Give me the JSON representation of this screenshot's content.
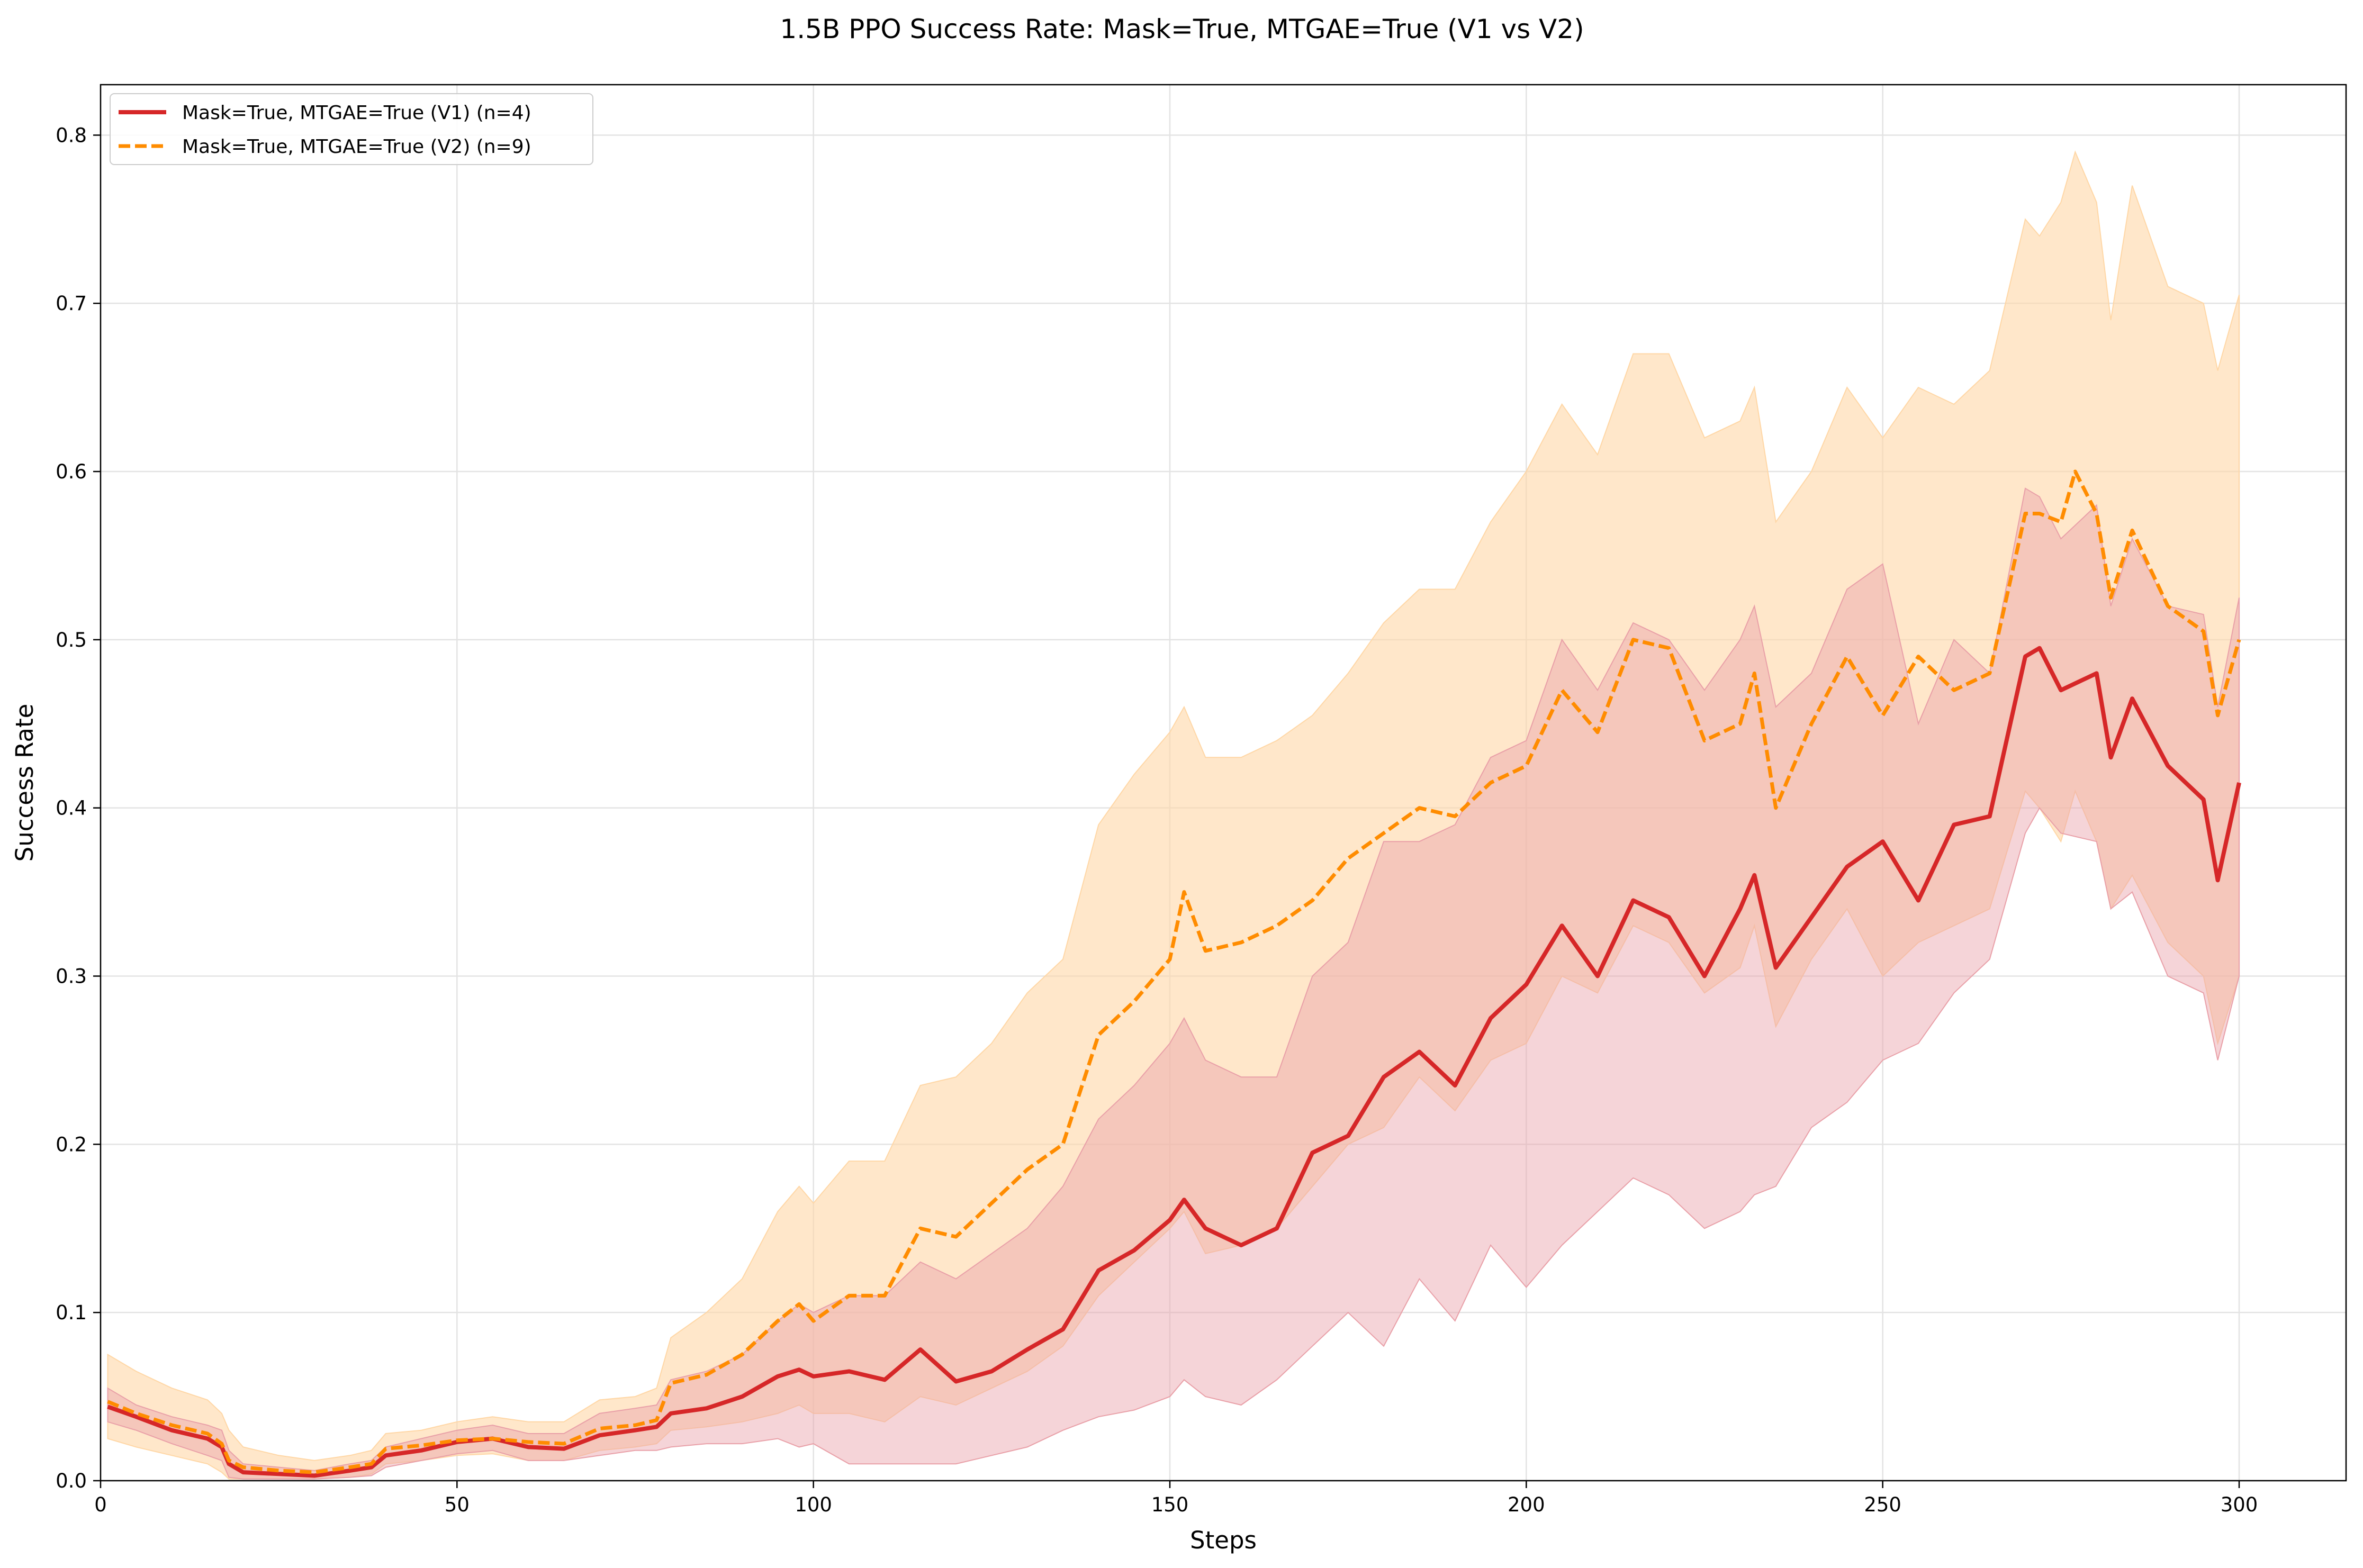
{
  "chart_data": {
    "type": "line",
    "title": "1.5B PPO Success Rate: Mask=True, MTGAE=True (V1 vs V2)",
    "xlabel": "Steps",
    "ylabel": "Success Rate",
    "xlim": [
      0,
      315
    ],
    "ylim": [
      0,
      0.83
    ],
    "xticks": [
      "0",
      "50",
      "100",
      "150",
      "200",
      "250",
      "300"
    ],
    "yticks": [
      "0.0",
      "0.1",
      "0.2",
      "0.3",
      "0.4",
      "0.5",
      "0.6",
      "0.7",
      "0.8"
    ],
    "grid": true,
    "legend_position": "top-left",
    "series": [
      {
        "name": "Mask=True, MTGAE=True (V1) (n=4)",
        "color": "#d62728",
        "line_style": "solid",
        "band_color": "#e9a0a8",
        "x": [
          1,
          5,
          10,
          15,
          17,
          18,
          20,
          25,
          30,
          35,
          38,
          40,
          45,
          50,
          55,
          60,
          65,
          70,
          75,
          78,
          80,
          85,
          90,
          95,
          98,
          100,
          105,
          110,
          115,
          120,
          125,
          130,
          135,
          140,
          145,
          150,
          152,
          155,
          160,
          165,
          170,
          175,
          180,
          185,
          190,
          195,
          200,
          205,
          210,
          215,
          220,
          225,
          230,
          232,
          235,
          240,
          245,
          250,
          255,
          260,
          265,
          270,
          272,
          275,
          280,
          282,
          285,
          290,
          295,
          297,
          300
        ],
        "mean": [
          0.044,
          0.038,
          0.03,
          0.025,
          0.02,
          0.01,
          0.005,
          0.004,
          0.003,
          0.006,
          0.008,
          0.015,
          0.018,
          0.023,
          0.025,
          0.02,
          0.019,
          0.027,
          0.03,
          0.032,
          0.04,
          0.043,
          0.05,
          0.062,
          0.066,
          0.062,
          0.065,
          0.06,
          0.078,
          0.059,
          0.065,
          0.078,
          0.09,
          0.125,
          0.137,
          0.155,
          0.167,
          0.15,
          0.14,
          0.15,
          0.195,
          0.205,
          0.24,
          0.255,
          0.235,
          0.275,
          0.295,
          0.33,
          0.3,
          0.345,
          0.335,
          0.3,
          0.34,
          0.36,
          0.305,
          0.335,
          0.365,
          0.38,
          0.345,
          0.39,
          0.395,
          0.49,
          0.495,
          0.47,
          0.48,
          0.43,
          0.465,
          0.425,
          0.405,
          0.357,
          0.415
        ],
        "lower": [
          0.035,
          0.03,
          0.022,
          0.015,
          0.012,
          0.002,
          0.001,
          0.001,
          0.001,
          0.002,
          0.003,
          0.008,
          0.012,
          0.016,
          0.018,
          0.012,
          0.012,
          0.015,
          0.018,
          0.018,
          0.02,
          0.022,
          0.022,
          0.025,
          0.02,
          0.022,
          0.01,
          0.01,
          0.01,
          0.01,
          0.015,
          0.02,
          0.03,
          0.038,
          0.042,
          0.05,
          0.06,
          0.05,
          0.045,
          0.06,
          0.08,
          0.1,
          0.08,
          0.12,
          0.095,
          0.14,
          0.115,
          0.14,
          0.16,
          0.18,
          0.17,
          0.15,
          0.16,
          0.17,
          0.175,
          0.21,
          0.225,
          0.25,
          0.26,
          0.29,
          0.31,
          0.385,
          0.4,
          0.385,
          0.38,
          0.34,
          0.35,
          0.3,
          0.29,
          0.25,
          0.3
        ],
        "upper": [
          0.055,
          0.045,
          0.038,
          0.033,
          0.03,
          0.018,
          0.01,
          0.008,
          0.006,
          0.01,
          0.012,
          0.02,
          0.025,
          0.03,
          0.033,
          0.028,
          0.028,
          0.04,
          0.043,
          0.045,
          0.06,
          0.065,
          0.075,
          0.095,
          0.105,
          0.1,
          0.11,
          0.11,
          0.13,
          0.12,
          0.135,
          0.15,
          0.175,
          0.215,
          0.235,
          0.26,
          0.275,
          0.25,
          0.24,
          0.24,
          0.3,
          0.32,
          0.38,
          0.38,
          0.39,
          0.43,
          0.44,
          0.5,
          0.47,
          0.51,
          0.5,
          0.47,
          0.5,
          0.52,
          0.46,
          0.48,
          0.53,
          0.545,
          0.45,
          0.5,
          0.48,
          0.59,
          0.585,
          0.56,
          0.58,
          0.52,
          0.56,
          0.52,
          0.515,
          0.46,
          0.525
        ]
      },
      {
        "name": "Mask=True, MTGAE=True (V2) (n=9)",
        "color": "#ff8c00",
        "line_style": "dashed",
        "band_color": "#ffd7a6",
        "x": [
          1,
          5,
          10,
          15,
          17,
          18,
          20,
          25,
          30,
          35,
          38,
          40,
          45,
          50,
          55,
          60,
          65,
          70,
          75,
          78,
          80,
          85,
          90,
          95,
          98,
          100,
          105,
          110,
          115,
          120,
          125,
          130,
          135,
          140,
          145,
          150,
          152,
          155,
          160,
          165,
          170,
          175,
          180,
          185,
          190,
          195,
          200,
          205,
          210,
          215,
          220,
          225,
          230,
          232,
          235,
          240,
          245,
          250,
          255,
          260,
          265,
          270,
          272,
          275,
          277,
          280,
          282,
          285,
          290,
          295,
          297,
          300
        ],
        "mean": [
          0.047,
          0.04,
          0.033,
          0.028,
          0.022,
          0.012,
          0.008,
          0.006,
          0.005,
          0.008,
          0.01,
          0.019,
          0.021,
          0.024,
          0.025,
          0.023,
          0.022,
          0.031,
          0.033,
          0.036,
          0.058,
          0.063,
          0.075,
          0.095,
          0.105,
          0.095,
          0.11,
          0.11,
          0.15,
          0.145,
          0.165,
          0.185,
          0.2,
          0.265,
          0.285,
          0.31,
          0.35,
          0.315,
          0.32,
          0.33,
          0.345,
          0.37,
          0.385,
          0.4,
          0.395,
          0.415,
          0.425,
          0.47,
          0.445,
          0.5,
          0.495,
          0.44,
          0.45,
          0.48,
          0.4,
          0.45,
          0.49,
          0.455,
          0.49,
          0.47,
          0.48,
          0.575,
          0.575,
          0.57,
          0.6,
          0.575,
          0.525,
          0.565,
          0.52,
          0.505,
          0.455,
          0.5
        ],
        "lower": [
          0.025,
          0.02,
          0.015,
          0.01,
          0.005,
          0.001,
          0.001,
          0.001,
          0.001,
          0.002,
          0.004,
          0.01,
          0.012,
          0.015,
          0.016,
          0.012,
          0.012,
          0.018,
          0.02,
          0.022,
          0.03,
          0.032,
          0.035,
          0.04,
          0.045,
          0.04,
          0.04,
          0.035,
          0.05,
          0.045,
          0.055,
          0.065,
          0.08,
          0.11,
          0.13,
          0.15,
          0.16,
          0.135,
          0.14,
          0.15,
          0.175,
          0.2,
          0.21,
          0.24,
          0.22,
          0.25,
          0.26,
          0.3,
          0.29,
          0.33,
          0.32,
          0.29,
          0.305,
          0.33,
          0.27,
          0.31,
          0.34,
          0.3,
          0.32,
          0.33,
          0.34,
          0.41,
          0.4,
          0.38,
          0.41,
          0.38,
          0.34,
          0.36,
          0.32,
          0.3,
          0.26,
          0.3
        ],
        "upper": [
          0.075,
          0.065,
          0.055,
          0.048,
          0.04,
          0.03,
          0.02,
          0.015,
          0.012,
          0.015,
          0.018,
          0.028,
          0.03,
          0.035,
          0.038,
          0.035,
          0.035,
          0.048,
          0.05,
          0.055,
          0.085,
          0.1,
          0.12,
          0.16,
          0.175,
          0.165,
          0.19,
          0.19,
          0.235,
          0.24,
          0.26,
          0.29,
          0.31,
          0.39,
          0.42,
          0.445,
          0.46,
          0.43,
          0.43,
          0.44,
          0.455,
          0.48,
          0.51,
          0.53,
          0.53,
          0.57,
          0.6,
          0.64,
          0.61,
          0.67,
          0.67,
          0.62,
          0.63,
          0.65,
          0.57,
          0.6,
          0.65,
          0.62,
          0.65,
          0.64,
          0.66,
          0.75,
          0.74,
          0.76,
          0.79,
          0.76,
          0.69,
          0.77,
          0.71,
          0.7,
          0.66,
          0.705
        ]
      }
    ]
  }
}
